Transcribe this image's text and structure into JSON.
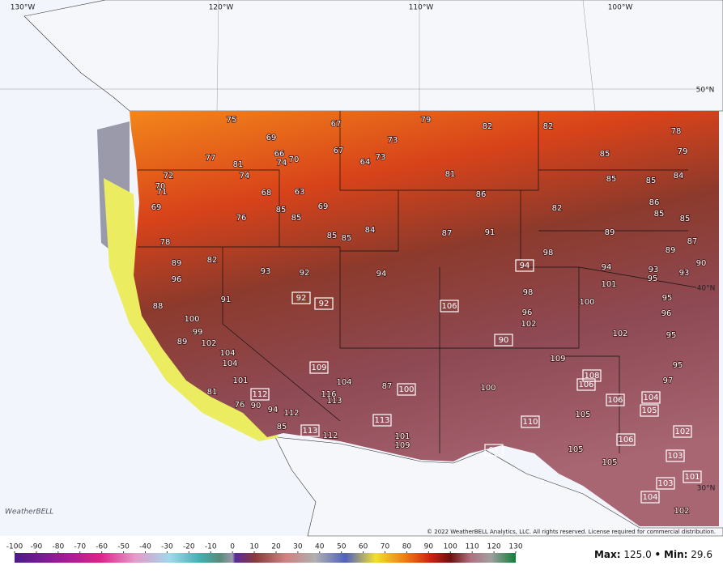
{
  "map": {
    "lon_labels": [
      "130°W",
      "120°W",
      "110°W",
      "100°W"
    ],
    "lat_labels": [
      "50°N",
      "40°N",
      "30°N"
    ],
    "temps": [
      75,
      69,
      67,
      79,
      82,
      82,
      78,
      73,
      79,
      85,
      66,
      70,
      67,
      64,
      73,
      74,
      81,
      77,
      81,
      74,
      85,
      85,
      84,
      72,
      70,
      71,
      68,
      63,
      86,
      86,
      82,
      85,
      85,
      69,
      76,
      85,
      85,
      69,
      84,
      87,
      91,
      89,
      87,
      85,
      85,
      78,
      89,
      82,
      89,
      98,
      94,
      94,
      93,
      93,
      95,
      90,
      93,
      92,
      94,
      96,
      101,
      98,
      95,
      92,
      92,
      91,
      88,
      100,
      96,
      106,
      96,
      102,
      100,
      99,
      102,
      95,
      89,
      102,
      104,
      90,
      109,
      104,
      95,
      108,
      106,
      97,
      109,
      104,
      87,
      100,
      100,
      101,
      106,
      104,
      105,
      116,
      113,
      81,
      112,
      76,
      90,
      94,
      112,
      105,
      113,
      110,
      102,
      106,
      85,
      113,
      112,
      101,
      109,
      105,
      103,
      105,
      101,
      103,
      104,
      102,
      91
    ],
    "logo": "WeatherBELL",
    "copyright": "© 2022 WeatherBELL Analytics, LLC. All rights reserved. License required for commercial distribution.",
    "colorbar_ticks": [
      -100,
      -90,
      -80,
      -70,
      -60,
      -50,
      -40,
      -30,
      -20,
      -10,
      0,
      10,
      20,
      30,
      40,
      50,
      60,
      70,
      80,
      90,
      100,
      110,
      120,
      130
    ],
    "max_label": "Max:",
    "max": "125.0",
    "separator": "•",
    "min_label": "Min:",
    "min": "29.6"
  }
}
